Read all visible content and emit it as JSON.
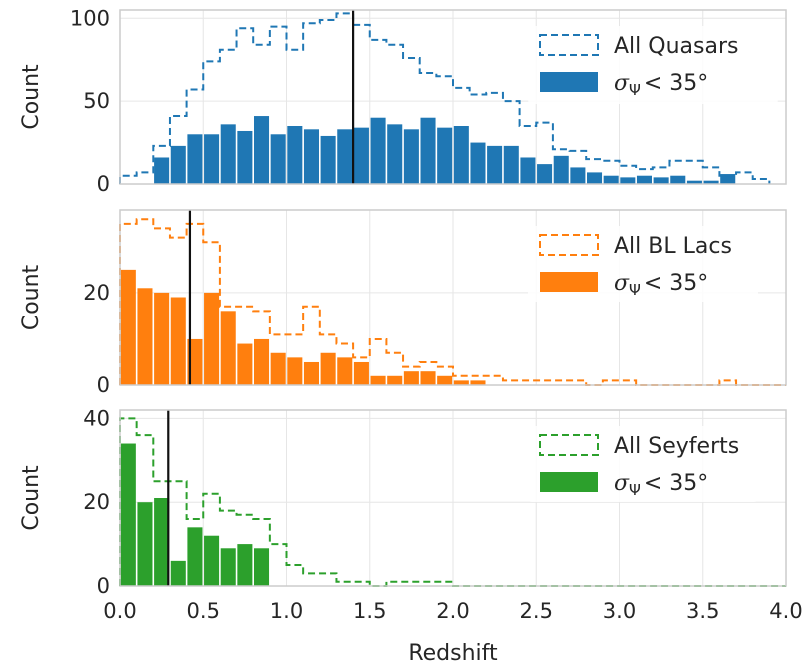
{
  "chart_data": [
    {
      "type": "bar",
      "name": "quasars",
      "ylabel": "Count",
      "xlabel": "",
      "xlim": [
        0.0,
        4.0
      ],
      "ylim": [
        0,
        105
      ],
      "yticks": [
        0,
        50,
        100
      ],
      "xticks": [
        "0.0",
        "0.5",
        "1.0",
        "1.5",
        "2.0",
        "2.5",
        "3.0",
        "3.5",
        "4.0"
      ],
      "xticks_visible": false,
      "color": "#1f77b4",
      "bin_width": 0.1,
      "median": 1.4,
      "legend": {
        "all_label": "All Quasars",
        "sub_label": "< 35°",
        "sub_symbol": "σ",
        "sub_subscript": "Ψ"
      },
      "all_bins_start": 0.0,
      "all_values": [
        5,
        7,
        23,
        41,
        57,
        74,
        81,
        94,
        84,
        95,
        81,
        97,
        99,
        103,
        96,
        87,
        84,
        76,
        67,
        65,
        58,
        54,
        55,
        50,
        35,
        37,
        21,
        20,
        15,
        14,
        11,
        9,
        10,
        14,
        14,
        10,
        5,
        7,
        3
      ],
      "sub_bins_start": 0.2,
      "sub_values": [
        16,
        23,
        30,
        30,
        36,
        32,
        41,
        30,
        35,
        33,
        29,
        33,
        34,
        40,
        36,
        33,
        40,
        34,
        35,
        25,
        23,
        23,
        16,
        12,
        17,
        10,
        7,
        5,
        4,
        5,
        4,
        5,
        2,
        2,
        6
      ]
    },
    {
      "type": "bar",
      "name": "bllacs",
      "ylabel": "Count",
      "xlabel": "",
      "xlim": [
        0.0,
        4.0
      ],
      "ylim": [
        0,
        38
      ],
      "yticks": [
        0,
        20
      ],
      "xticks": [
        "0.0",
        "0.5",
        "1.0",
        "1.5",
        "2.0",
        "2.5",
        "3.0",
        "3.5",
        "4.0"
      ],
      "xticks_visible": false,
      "color": "#ff7f0e",
      "bin_width": 0.1,
      "median": 0.42,
      "legend": {
        "all_label": "All BL Lacs",
        "sub_label": "< 35°",
        "sub_symbol": "σ",
        "sub_subscript": "Ψ"
      },
      "all_bins_start": 0.0,
      "all_values": [
        35,
        36,
        34,
        32,
        35,
        31,
        17,
        17,
        16,
        11,
        11,
        17,
        11,
        9,
        6,
        10,
        7,
        4,
        5,
        4,
        2,
        2,
        2,
        1,
        1,
        1,
        1,
        1,
        0,
        1,
        1,
        0,
        0,
        0,
        0,
        0,
        1,
        0,
        0,
        0
      ],
      "sub_bins_start": 0.0,
      "sub_values": [
        25,
        21,
        20,
        19,
        10,
        20,
        16,
        9,
        10,
        7,
        6,
        5,
        7,
        6,
        5,
        2,
        2,
        3,
        3,
        2,
        1,
        1,
        0,
        0,
        0,
        0,
        0,
        0,
        0,
        0,
        0,
        0,
        0,
        0,
        0,
        0,
        0,
        0,
        0,
        0
      ]
    },
    {
      "type": "bar",
      "name": "seyferts",
      "ylabel": "Count",
      "xlabel": "Redshift",
      "xlim": [
        0.0,
        4.0
      ],
      "ylim": [
        0,
        42
      ],
      "yticks": [
        0,
        20,
        40
      ],
      "xticks": [
        "0.0",
        "0.5",
        "1.0",
        "1.5",
        "2.0",
        "2.5",
        "3.0",
        "3.5",
        "4.0"
      ],
      "xticks_visible": true,
      "color": "#2ca02c",
      "bin_width": 0.1,
      "median": 0.29,
      "legend": {
        "all_label": "All Seyferts",
        "sub_label": "< 35°",
        "sub_symbol": "σ",
        "sub_subscript": "Ψ"
      },
      "all_bins_start": 0.0,
      "all_values": [
        40,
        36,
        25,
        25,
        16,
        22,
        18,
        17,
        16,
        10,
        5,
        3,
        3,
        1,
        1,
        0,
        1,
        1,
        1,
        1,
        0,
        0,
        0,
        0,
        0,
        0,
        0,
        0,
        0,
        0,
        0,
        0,
        0,
        0,
        0,
        0,
        0,
        0,
        0,
        0
      ],
      "sub_bins_start": 0.0,
      "sub_values": [
        34,
        20,
        21,
        6,
        14,
        12,
        9,
        10,
        9,
        0,
        0,
        0,
        0,
        0,
        0,
        0,
        0,
        0,
        0,
        0,
        0,
        0,
        0,
        0,
        0,
        0,
        0,
        0,
        0,
        0,
        0,
        0,
        0,
        0,
        0,
        0,
        0,
        0,
        0,
        0
      ]
    }
  ]
}
